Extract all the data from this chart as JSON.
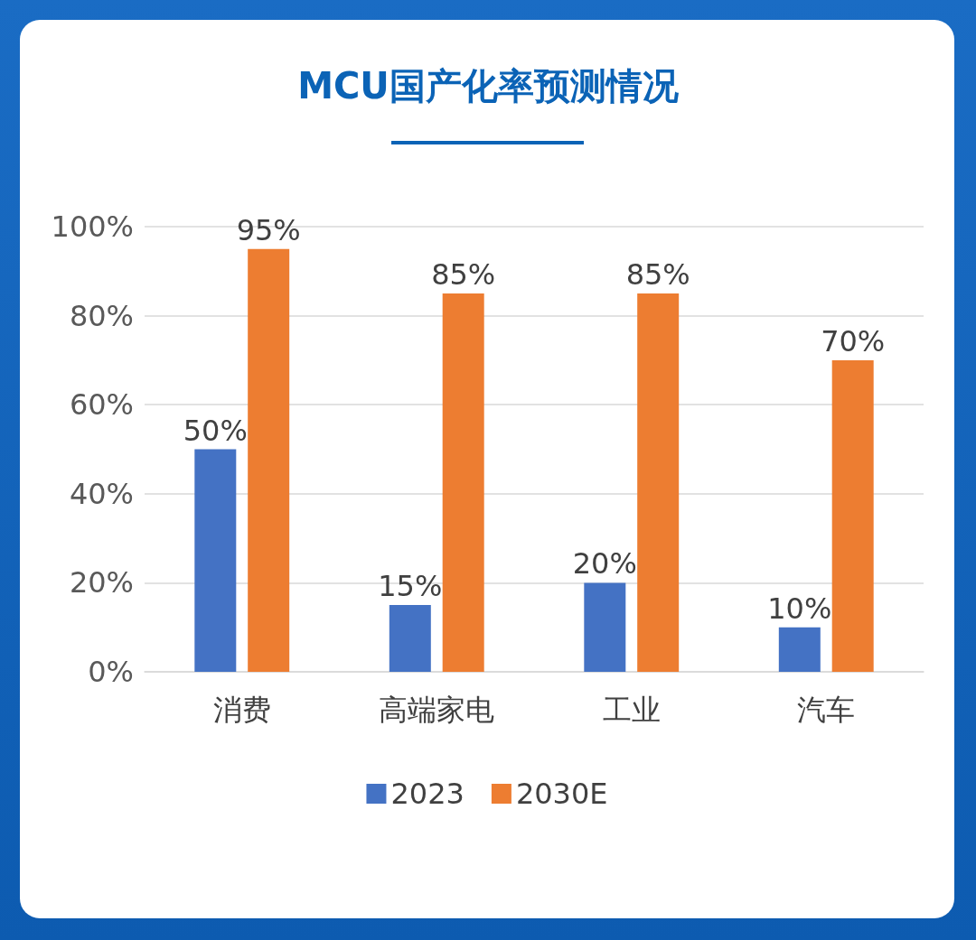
{
  "chart_data": {
    "type": "bar",
    "title": "MCU国产化率预测情况",
    "categories": [
      "消费",
      "高端家电",
      "工业",
      "汽车"
    ],
    "series": [
      {
        "name": "2023",
        "color": "#4472c4",
        "values": [
          50,
          15,
          20,
          10
        ],
        "value_labels": [
          "50%",
          "15%",
          "20%",
          "10%"
        ]
      },
      {
        "name": "2030E",
        "color": "#ed7d31",
        "values": [
          95,
          85,
          85,
          70
        ],
        "value_labels": [
          "95%",
          "85%",
          "85%",
          "70%"
        ]
      }
    ],
    "ylim": [
      0,
      100
    ],
    "yticks": [
      {
        "value": 0,
        "label": "0%"
      },
      {
        "value": 20,
        "label": "20%"
      },
      {
        "value": 40,
        "label": "40%"
      },
      {
        "value": 60,
        "label": "60%"
      },
      {
        "value": 80,
        "label": "80%"
      },
      {
        "value": 100,
        "label": "100%"
      }
    ],
    "grid": "y",
    "legend": "bottom"
  }
}
